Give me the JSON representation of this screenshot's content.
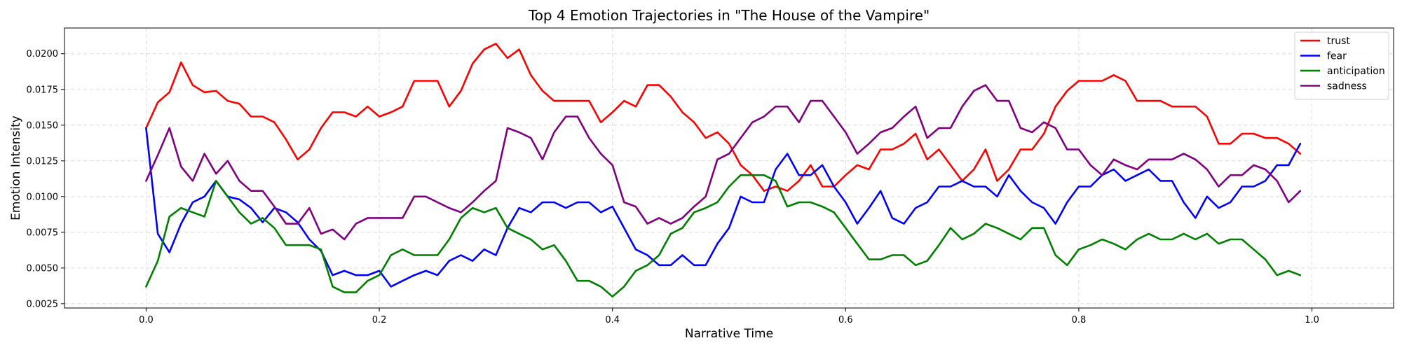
{
  "chart_data": {
    "type": "line",
    "title": "Top 4 Emotion Trajectories in \"The House of the Vampire\"",
    "xlabel": "Narrative Time",
    "ylabel": "Emotion Intensity",
    "xlim": [
      -0.07,
      1.07
    ],
    "ylim": [
      0.0022,
      0.0218
    ],
    "xticks": [
      0.0,
      0.2,
      0.4,
      0.6,
      0.8,
      1.0
    ],
    "xtick_labels": [
      "0.0",
      "0.2",
      "0.4",
      "0.6",
      "0.8",
      "1.0"
    ],
    "yticks": [
      0.0025,
      0.005,
      0.0075,
      0.01,
      0.0125,
      0.015,
      0.0175,
      0.02
    ],
    "ytick_labels": [
      "0.0025",
      "0.0050",
      "0.0075",
      "0.0100",
      "0.0125",
      "0.0150",
      "0.0175",
      "0.0200"
    ],
    "grid": true,
    "legend_position": "top-right",
    "x": [
      0.0,
      0.01,
      0.02,
      0.03,
      0.04,
      0.05,
      0.06,
      0.07,
      0.08,
      0.09,
      0.1,
      0.11,
      0.12,
      0.13,
      0.14,
      0.15,
      0.16,
      0.17,
      0.18,
      0.19,
      0.2,
      0.21,
      0.22,
      0.23,
      0.24,
      0.25,
      0.26,
      0.27,
      0.28,
      0.29,
      0.3,
      0.31,
      0.32,
      0.33,
      0.34,
      0.35,
      0.36,
      0.37,
      0.38,
      0.39,
      0.4,
      0.41,
      0.42,
      0.43,
      0.44,
      0.45,
      0.46,
      0.47,
      0.48,
      0.49,
      0.5,
      0.51,
      0.52,
      0.53,
      0.54,
      0.55,
      0.56,
      0.57,
      0.58,
      0.59,
      0.6,
      0.61,
      0.62,
      0.63,
      0.64,
      0.65,
      0.66,
      0.67,
      0.68,
      0.69,
      0.7,
      0.71,
      0.72,
      0.73,
      0.74,
      0.75,
      0.76,
      0.77,
      0.78,
      0.79,
      0.8,
      0.81,
      0.82,
      0.83,
      0.84,
      0.85,
      0.86,
      0.87,
      0.88,
      0.89,
      0.9,
      0.91,
      0.92,
      0.93,
      0.94,
      0.95,
      0.96,
      0.97,
      0.98,
      0.99
    ],
    "series": [
      {
        "name": "trust",
        "color": "#ff0000",
        "values": [
          0.0148,
          0.0166,
          0.0173,
          0.0194,
          0.0178,
          0.0173,
          0.0174,
          0.0167,
          0.0165,
          0.0156,
          0.0156,
          0.0152,
          0.014,
          0.0126,
          0.0133,
          0.0148,
          0.0159,
          0.0159,
          0.0156,
          0.0163,
          0.0156,
          0.0159,
          0.0163,
          0.0181,
          0.0181,
          0.0181,
          0.0163,
          0.0174,
          0.0193,
          0.0203,
          0.0207,
          0.0197,
          0.0203,
          0.0185,
          0.0174,
          0.0167,
          0.0167,
          0.0167,
          0.0167,
          0.0152,
          0.0159,
          0.0167,
          0.0163,
          0.0178,
          0.0178,
          0.017,
          0.0159,
          0.0152,
          0.0141,
          0.0145,
          0.0137,
          0.0122,
          0.0115,
          0.0104,
          0.0107,
          0.0104,
          0.0111,
          0.0122,
          0.0107,
          0.0107,
          0.0115,
          0.0122,
          0.0119,
          0.0133,
          0.0133,
          0.0137,
          0.0144,
          0.0126,
          0.0133,
          0.0122,
          0.0111,
          0.0119,
          0.0133,
          0.0111,
          0.0119,
          0.0133,
          0.0133,
          0.0144,
          0.0163,
          0.0174,
          0.0181,
          0.0181,
          0.0181,
          0.0185,
          0.0181,
          0.0167,
          0.0167,
          0.0167,
          0.0163,
          0.0163,
          0.0163,
          0.0156,
          0.0137,
          0.0137,
          0.0144,
          0.0144,
          0.0141,
          0.0141,
          0.0137,
          0.013
        ]
      },
      {
        "name": "fear",
        "color": "#0000ff",
        "values": [
          0.0148,
          0.0074,
          0.0061,
          0.0081,
          0.0096,
          0.01,
          0.0111,
          0.01,
          0.0098,
          0.0092,
          0.0082,
          0.0092,
          0.0089,
          0.0082,
          0.007,
          0.0062,
          0.0045,
          0.0048,
          0.0045,
          0.0045,
          0.0048,
          0.0037,
          0.0041,
          0.0045,
          0.0048,
          0.0045,
          0.0055,
          0.0059,
          0.0055,
          0.0063,
          0.0059,
          0.0078,
          0.0092,
          0.0089,
          0.0096,
          0.0096,
          0.0092,
          0.0096,
          0.0096,
          0.0089,
          0.0093,
          0.0078,
          0.0063,
          0.0059,
          0.0052,
          0.0052,
          0.0059,
          0.0052,
          0.0052,
          0.0067,
          0.0078,
          0.01,
          0.0096,
          0.0096,
          0.0119,
          0.013,
          0.0115,
          0.0115,
          0.0122,
          0.0107,
          0.0096,
          0.0081,
          0.0092,
          0.0104,
          0.0085,
          0.0081,
          0.0092,
          0.0096,
          0.0107,
          0.0107,
          0.0111,
          0.0107,
          0.0107,
          0.01,
          0.0115,
          0.0104,
          0.0096,
          0.0092,
          0.0081,
          0.0096,
          0.0107,
          0.0107,
          0.0115,
          0.0119,
          0.0111,
          0.0115,
          0.0119,
          0.0111,
          0.0111,
          0.0096,
          0.0085,
          0.01,
          0.0092,
          0.0096,
          0.0107,
          0.0107,
          0.0111,
          0.0122,
          0.0122,
          0.0137
        ]
      },
      {
        "name": "anticipation",
        "color": "#008000",
        "values": [
          0.0037,
          0.0055,
          0.0086,
          0.0092,
          0.0089,
          0.0086,
          0.0111,
          0.01,
          0.0089,
          0.0081,
          0.0085,
          0.0078,
          0.0066,
          0.0066,
          0.0066,
          0.0063,
          0.0037,
          0.0033,
          0.0033,
          0.0041,
          0.0045,
          0.0059,
          0.0063,
          0.0059,
          0.0059,
          0.0059,
          0.007,
          0.0085,
          0.0092,
          0.0089,
          0.0092,
          0.0078,
          0.0074,
          0.007,
          0.0063,
          0.0066,
          0.0055,
          0.0041,
          0.0041,
          0.0037,
          0.003,
          0.0037,
          0.0048,
          0.0052,
          0.0059,
          0.0074,
          0.0078,
          0.0089,
          0.0092,
          0.0096,
          0.0107,
          0.0115,
          0.0115,
          0.0115,
          0.0111,
          0.0093,
          0.0096,
          0.0096,
          0.0093,
          0.0089,
          0.0078,
          0.0067,
          0.0056,
          0.0056,
          0.0059,
          0.0059,
          0.0052,
          0.0055,
          0.0066,
          0.0078,
          0.007,
          0.0074,
          0.0081,
          0.0078,
          0.0074,
          0.007,
          0.0078,
          0.0078,
          0.0059,
          0.0052,
          0.0063,
          0.0066,
          0.007,
          0.0067,
          0.0063,
          0.007,
          0.0074,
          0.007,
          0.007,
          0.0074,
          0.007,
          0.0074,
          0.0067,
          0.007,
          0.007,
          0.0063,
          0.0056,
          0.0045,
          0.0048,
          0.0045
        ]
      },
      {
        "name": "sadness",
        "color": "#800080",
        "values": [
          0.0111,
          0.0129,
          0.0148,
          0.0121,
          0.0111,
          0.013,
          0.0116,
          0.0125,
          0.0111,
          0.0104,
          0.0104,
          0.0093,
          0.0081,
          0.0081,
          0.0092,
          0.0074,
          0.0077,
          0.007,
          0.0081,
          0.0085,
          0.0085,
          0.0085,
          0.0085,
          0.01,
          0.01,
          0.0096,
          0.0092,
          0.0089,
          0.0096,
          0.0104,
          0.0111,
          0.0148,
          0.0145,
          0.0141,
          0.0126,
          0.0145,
          0.0156,
          0.0156,
          0.0141,
          0.013,
          0.0122,
          0.0096,
          0.0093,
          0.0081,
          0.0085,
          0.0081,
          0.0085,
          0.0093,
          0.01,
          0.0126,
          0.013,
          0.0141,
          0.0152,
          0.0156,
          0.0163,
          0.0163,
          0.0152,
          0.0167,
          0.0167,
          0.0156,
          0.0145,
          0.013,
          0.0137,
          0.0145,
          0.0148,
          0.0156,
          0.0163,
          0.0141,
          0.0148,
          0.0148,
          0.0163,
          0.0174,
          0.0178,
          0.0167,
          0.0167,
          0.0148,
          0.0145,
          0.0152,
          0.0148,
          0.0133,
          0.0133,
          0.0122,
          0.0115,
          0.0126,
          0.0122,
          0.0119,
          0.0126,
          0.0126,
          0.0126,
          0.013,
          0.0126,
          0.0119,
          0.0107,
          0.0115,
          0.0115,
          0.0122,
          0.0119,
          0.0111,
          0.0096,
          0.0104
        ]
      }
    ]
  }
}
